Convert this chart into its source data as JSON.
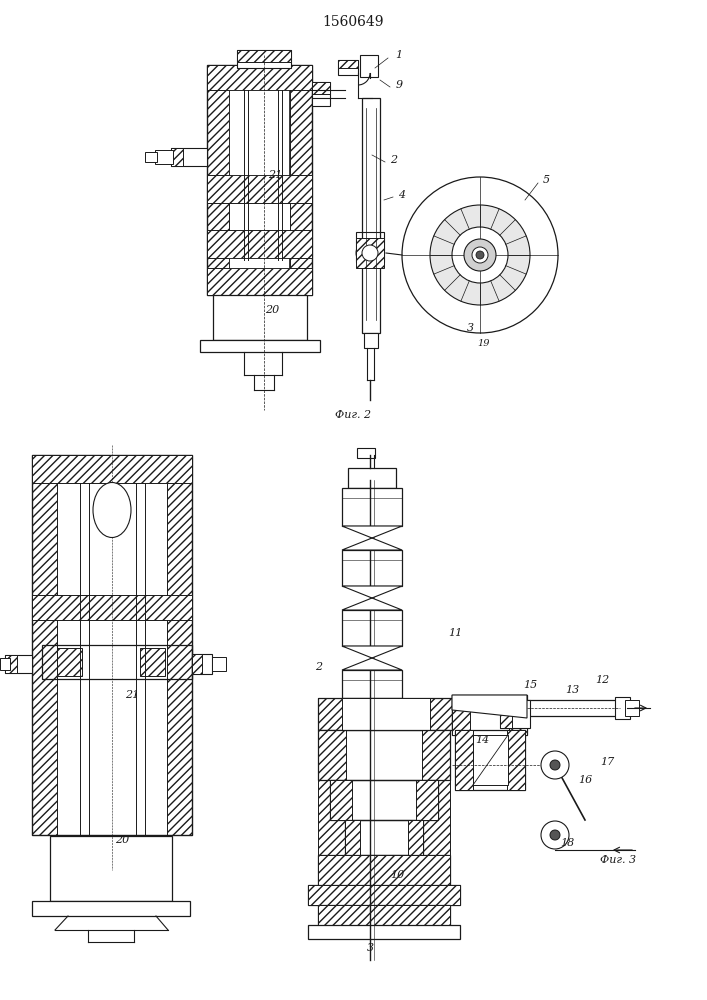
{
  "title": "1560649",
  "fig2_label": "Фиг. 2",
  "fig3_label": "Фиг. 3",
  "bg_color": "#ffffff",
  "lc": "#1a1a1a",
  "fig_width": 7.07,
  "fig_height": 10.0,
  "dpi": 100
}
